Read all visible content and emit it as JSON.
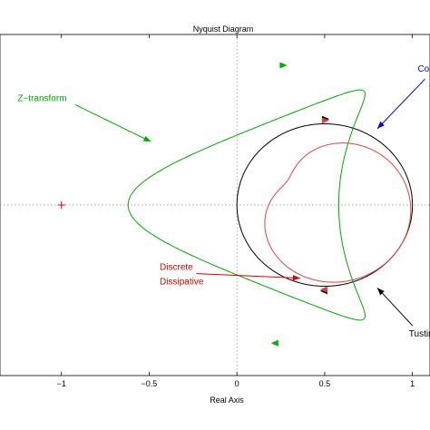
{
  "chart_data": {
    "type": "line",
    "title": "Nyquist Diagram",
    "xlabel": "Real Axis",
    "ylabel": "",
    "xlim": [
      -1.35,
      1.1
    ],
    "ylim": [
      -1.05,
      1.05
    ],
    "grid": false,
    "x_ticks": [
      -1,
      -0.5,
      0,
      0.5,
      1
    ],
    "x_tick_labels": [
      "−1",
      "−0.5",
      "0",
      "0.5",
      "1"
    ],
    "crosshair_origin": [
      0,
      0
    ],
    "critical_point": {
      "x": -1,
      "y": 0,
      "marker": "+",
      "color": "#dd0000"
    },
    "series": [
      {
        "name": "Tustin−t",
        "color": "#000000",
        "kind": "circle",
        "center": [
          0.5,
          0
        ],
        "radius": 0.5,
        "arrows": [
          [
            0.5,
            0.53
          ],
          [
            0.5,
            -0.53
          ]
        ]
      },
      {
        "name": "Discrete Dissipative",
        "color": "#dd4444",
        "kind": "epicycle",
        "base_radius": 0.38,
        "offset_radius": 0.12,
        "center": [
          0.5,
          0
        ],
        "arrows": [
          [
            0.5,
            0.52
          ],
          [
            0.5,
            -0.52
          ]
        ]
      },
      {
        "name": "Z−transform",
        "color": "#00aa00",
        "kind": "loop",
        "arrows": [
          [
            0.26,
            0.86
          ],
          [
            0.22,
            -0.85
          ]
        ]
      }
    ],
    "annotations": [
      {
        "text": "Z−transform",
        "color": "#00aa00",
        "tx": -1.25,
        "ty": 0.64,
        "ax": -0.49,
        "ay": 0.39
      },
      {
        "text": "Contin",
        "color": "#0000cc",
        "tx": 1.03,
        "ty": 0.82,
        "ax": 0.8,
        "ay": 0.47
      },
      {
        "text": "Discrete",
        "color": "#dd0000",
        "tx": -0.44,
        "ty": -0.4,
        "ax": 0.36,
        "ay": -0.45
      },
      {
        "text": "Dissipative",
        "color": "#dd0000",
        "tx": -0.44,
        "ty": -0.49,
        "ax": null,
        "ay": null
      },
      {
        "text": "Tustin−t",
        "color": "#000000",
        "tx": 0.98,
        "ty": -0.81,
        "ax": 0.8,
        "ay": -0.51
      }
    ]
  }
}
